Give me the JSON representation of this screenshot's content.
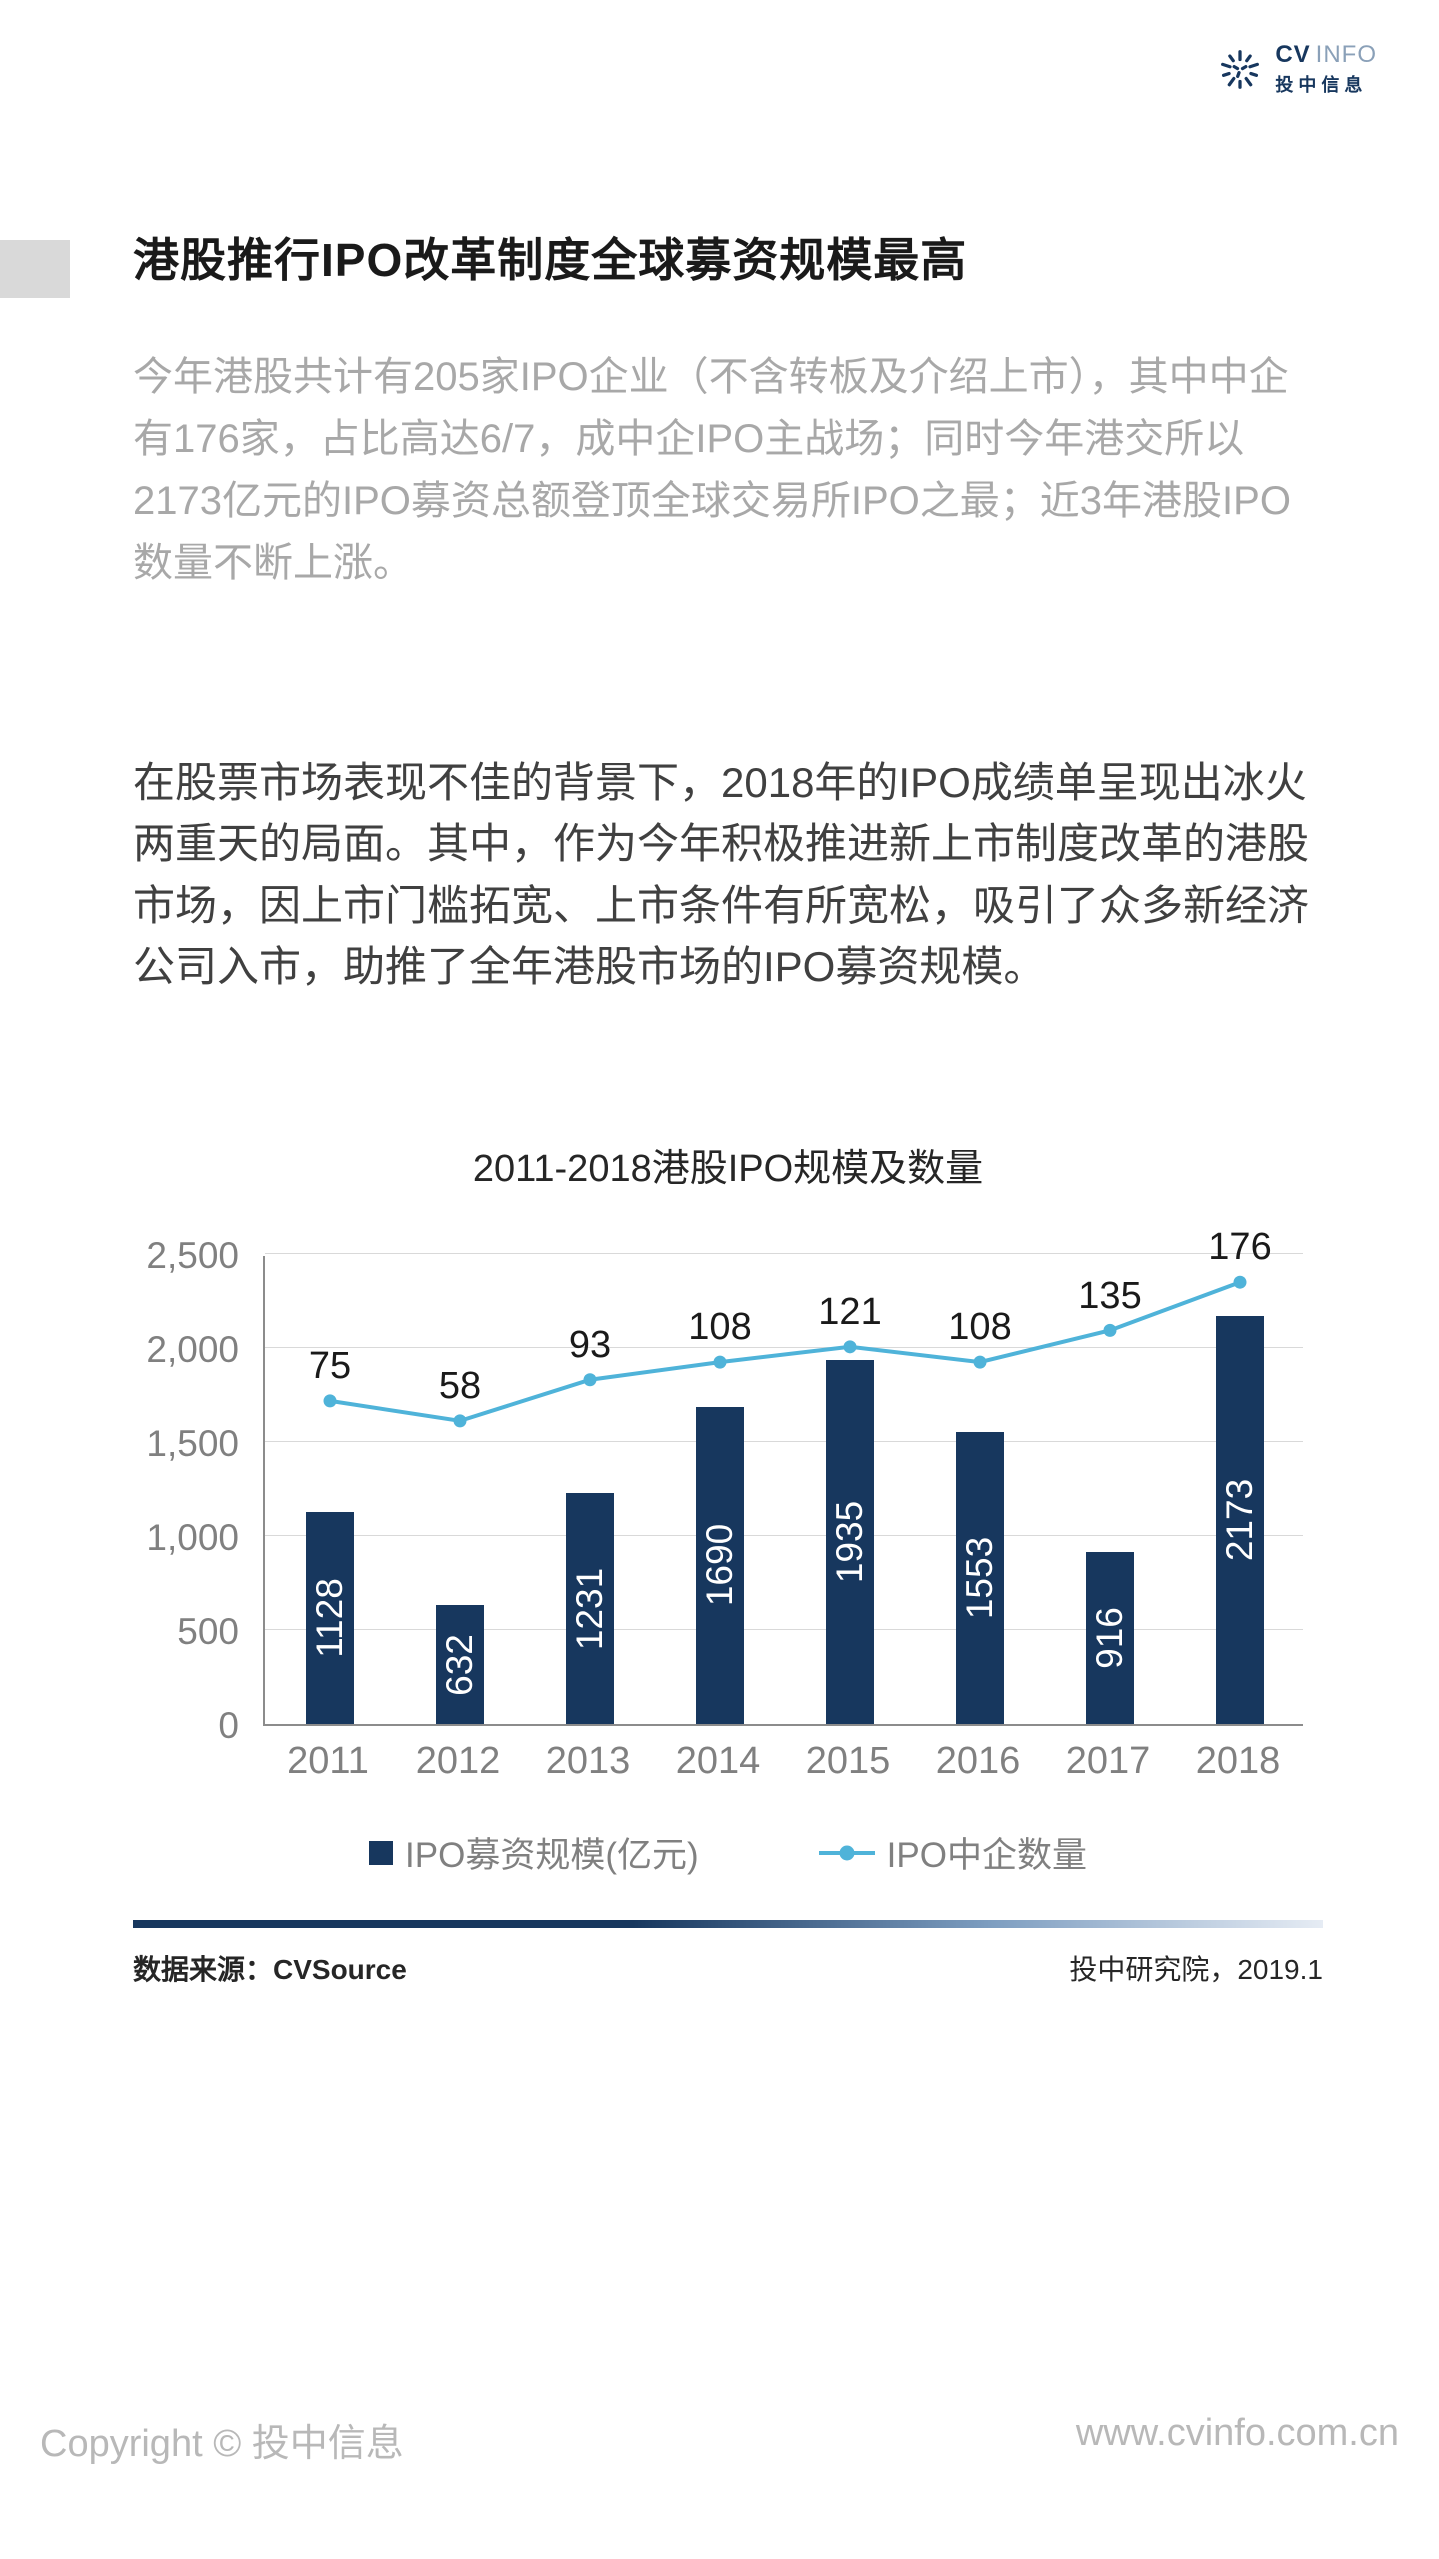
{
  "logo": {
    "icon": "swirl-logo-icon",
    "brand_bold": "CV",
    "brand_light": "INFO",
    "brand_cn": "投中信息",
    "brand_color": "#17375e"
  },
  "header": {
    "title": "港股推行IPO改革制度全球募资规模最高"
  },
  "paragraphs": {
    "summary": "今年港股共计有205家IPO企业（不含转板及介绍上市），其中中企有176家，占比高达6/7，成中企IPO主战场；同时今年港交所以2173亿元的IPO募资总额登顶全球交易所IPO之最；近3年港股IPO数量不断上涨。",
    "body": "在股票市场表现不佳的背景下，2018年的IPO成绩单呈现出冰火两重天的局面。其中，作为今年积极推进新上市制度改革的港股市场，因上市门槛拓宽、上市条件有所宽松，吸引了众多新经济公司入市，助推了全年港股市场的IPO募资规模。"
  },
  "chart_data": {
    "type": "bar+line",
    "title": "2011-2018港股IPO规模及数量",
    "categories": [
      "2011",
      "2012",
      "2013",
      "2014",
      "2015",
      "2016",
      "2017",
      "2018"
    ],
    "series": [
      {
        "name": "IPO募资规模(亿元)",
        "type": "bar",
        "color": "#17375e",
        "values": [
          1128,
          632,
          1231,
          1690,
          1935,
          1553,
          916,
          2173
        ]
      },
      {
        "name": "IPO中企数量",
        "type": "line",
        "color": "#4fb3d9",
        "values": [
          75,
          58,
          93,
          108,
          121,
          108,
          135,
          176
        ]
      }
    ],
    "y_axis": {
      "min": 0,
      "max": 2500,
      "ticks": [
        0,
        500,
        1000,
        1500,
        2000,
        2500
      ]
    },
    "secondary_axis": {
      "min": -200,
      "max": 200,
      "visible": false
    },
    "grid": true,
    "legend_position": "bottom"
  },
  "source_row": {
    "left": "数据来源：CVSource",
    "right": "投中研究院，2019.1"
  },
  "footer": {
    "left": "Copyright © 投中信息",
    "right": "www.cvinfo.com.cn"
  }
}
